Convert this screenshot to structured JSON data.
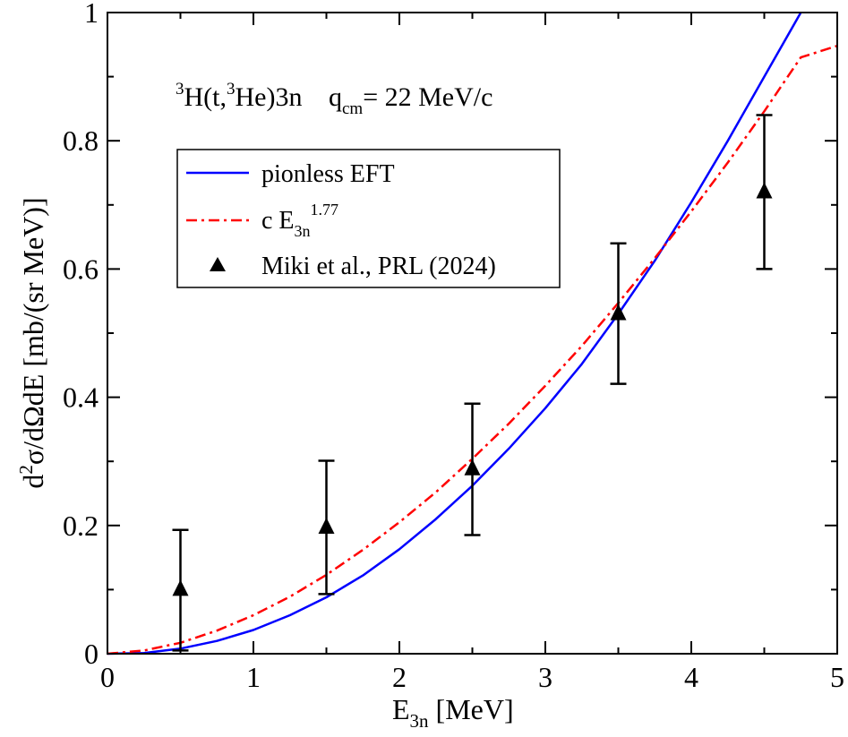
{
  "chart_data": {
    "type": "line",
    "title_parts": {
      "reaction_sup1": "3",
      "reaction_a": "H(t,",
      "reaction_sup2": "3",
      "reaction_b": "He)3n",
      "q_label": "q",
      "q_sub": "cm",
      "q_value": "= 22 MeV/c"
    },
    "xlabel_main": "E",
    "xlabel_sub": "3n",
    "xlabel_unit": " [MeV]",
    "ylabel_pre": "d",
    "ylabel_sup": "2",
    "ylabel_main": "σ/dΩdE [mb/(sr MeV)]",
    "xlim": [
      0,
      5
    ],
    "ylim": [
      0,
      1
    ],
    "x_ticks": [
      {
        "value": 0,
        "label": "0"
      },
      {
        "value": 1,
        "label": "1"
      },
      {
        "value": 2,
        "label": "2"
      },
      {
        "value": 3,
        "label": "3"
      },
      {
        "value": 4,
        "label": "4"
      },
      {
        "value": 5,
        "label": "5"
      }
    ],
    "y_ticks": [
      {
        "value": 0,
        "label": "0"
      },
      {
        "value": 0.2,
        "label": "0.2"
      },
      {
        "value": 0.4,
        "label": "0.4"
      },
      {
        "value": 0.6,
        "label": "0.6"
      },
      {
        "value": 0.8,
        "label": "0.8"
      },
      {
        "value": 1,
        "label": "1"
      }
    ],
    "series": [
      {
        "name": "pionless EFT",
        "kind": "line",
        "style": "solid",
        "color": "#0000ff",
        "x": [
          0,
          0.25,
          0.5,
          0.75,
          1.0,
          1.25,
          1.5,
          1.75,
          2.0,
          2.25,
          2.5,
          2.75,
          3.0,
          3.25,
          3.5,
          3.75,
          4.0,
          4.25,
          4.5,
          4.75
        ],
        "y": [
          0,
          0.001,
          0.008,
          0.02,
          0.037,
          0.06,
          0.088,
          0.122,
          0.163,
          0.21,
          0.262,
          0.32,
          0.383,
          0.452,
          0.53,
          0.613,
          0.704,
          0.8,
          0.9,
          1.0
        ]
      },
      {
        "name": "c E",
        "name_sub": "3n",
        "name_sup": "1.77",
        "kind": "line",
        "style": "dash-dot",
        "color": "#ff0000",
        "x": [
          0,
          0.25,
          0.5,
          0.75,
          1.0,
          1.25,
          1.5,
          1.75,
          2.0,
          2.25,
          2.5,
          2.75,
          3.0,
          3.25,
          3.5,
          3.75,
          4.0,
          4.25,
          4.5,
          4.75,
          5.0
        ],
        "y": [
          0,
          0.005,
          0.017,
          0.036,
          0.06,
          0.089,
          0.123,
          0.162,
          0.205,
          0.252,
          0.304,
          0.359,
          0.418,
          0.48,
          0.547,
          0.617,
          0.69,
          0.766,
          0.846,
          0.93,
          0.948
        ]
      },
      {
        "name": "Miki et al., PRL (2024)",
        "kind": "scatter",
        "color": "#000000",
        "x": [
          0.5,
          1.5,
          2.5,
          3.5,
          4.5
        ],
        "y": [
          0.1,
          0.197,
          0.288,
          0.53,
          0.72
        ],
        "err_low": [
          0.005,
          0.093,
          0.185,
          0.421,
          0.6
        ],
        "err_high": [
          0.193,
          0.301,
          0.39,
          0.64,
          0.84
        ]
      }
    ],
    "legend": {
      "position": "upper-left",
      "entries": [
        {
          "label": "pionless EFT"
        },
        {
          "label": "c E",
          "sub": "3n",
          "sup": "1.77"
        },
        {
          "label": "Miki et al., PRL (2024)"
        }
      ]
    }
  }
}
